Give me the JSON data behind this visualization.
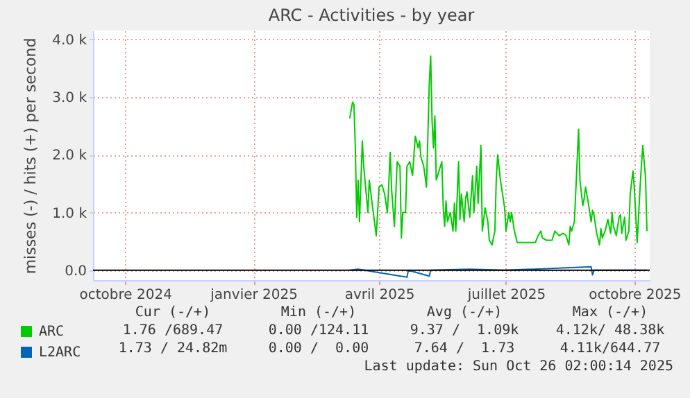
{
  "chart_data": {
    "type": "line",
    "title": "ARC - Activities - by year",
    "ylabel": "misses (-) / hits (+) per second",
    "xlim": [
      "2024-09-23",
      "2025-10-27"
    ],
    "xticks": [
      {
        "value": "2024-10-16",
        "label": "octobre 2024"
      },
      {
        "value": "2025-01-16",
        "label": "janvier 2025"
      },
      {
        "value": "2025-04-16",
        "label": "avril 2025"
      },
      {
        "value": "2025-07-16",
        "label": "juillet 2025"
      },
      {
        "value": "2025-10-16",
        "label": "octobre 2025"
      }
    ],
    "ylim": [
      -170,
      4150
    ],
    "yticks": [
      {
        "value": 0,
        "label": "0.0"
      },
      {
        "value": 1000,
        "label": "1.0 k"
      },
      {
        "value": 2000,
        "label": "2.0 k"
      },
      {
        "value": 3000,
        "label": "3.0 k"
      },
      {
        "value": 4000,
        "label": "4.0 k"
      }
    ],
    "grid": true,
    "legend": "bottom",
    "ref_lines": [
      {
        "axis": "y",
        "value": 0,
        "color": "#000000"
      }
    ],
    "series": [
      {
        "name": "ARC",
        "color": "#00cc00",
        "x": [
          "2025-03-26",
          "2025-03-28",
          "2025-03-29",
          "2025-03-30",
          "2025-03-31",
          "2025-04-01",
          "2025-04-02",
          "2025-04-04",
          "2025-04-05",
          "2025-04-08",
          "2025-04-09",
          "2025-04-11",
          "2025-04-14",
          "2025-04-16",
          "2025-04-18",
          "2025-04-20",
          "2025-04-22",
          "2025-04-24",
          "2025-04-25",
          "2025-04-27",
          "2025-04-29",
          "2025-05-01",
          "2025-05-02",
          "2025-05-03",
          "2025-05-05",
          "2025-05-06",
          "2025-05-08",
          "2025-05-10",
          "2025-05-11",
          "2025-05-12",
          "2025-05-14",
          "2025-05-15",
          "2025-05-16",
          "2025-05-18",
          "2025-05-20",
          "2025-05-22",
          "2025-05-23",
          "2025-05-24",
          "2025-05-25",
          "2025-05-26",
          "2025-05-27",
          "2025-05-29",
          "2025-05-31",
          "2025-06-01",
          "2025-06-02",
          "2025-06-03",
          "2025-06-04",
          "2025-06-06",
          "2025-06-08",
          "2025-06-09",
          "2025-06-10",
          "2025-06-12",
          "2025-06-13",
          "2025-06-14",
          "2025-06-16",
          "2025-06-17",
          "2025-06-18",
          "2025-06-20",
          "2025-06-22",
          "2025-06-23",
          "2025-06-25",
          "2025-06-26",
          "2025-06-28",
          "2025-06-29",
          "2025-07-01",
          "2025-07-03",
          "2025-07-04",
          "2025-07-06",
          "2025-07-08",
          "2025-07-09",
          "2025-07-10",
          "2025-07-12",
          "2025-07-13",
          "2025-07-15",
          "2025-07-16",
          "2025-07-18",
          "2025-07-19",
          "2025-07-20",
          "2025-07-22",
          "2025-07-24",
          "2025-07-31",
          "2025-08-06",
          "2025-08-08",
          "2025-08-10",
          "2025-08-11",
          "2025-08-14",
          "2025-08-18",
          "2025-08-20",
          "2025-08-23",
          "2025-08-26",
          "2025-08-28",
          "2025-08-30",
          "2025-08-31",
          "2025-09-01",
          "2025-09-03",
          "2025-09-06",
          "2025-09-07",
          "2025-09-09",
          "2025-09-10",
          "2025-09-11",
          "2025-09-13",
          "2025-09-15",
          "2025-09-16",
          "2025-09-17",
          "2025-09-19",
          "2025-09-21",
          "2025-09-22",
          "2025-09-23",
          "2025-09-25",
          "2025-09-27",
          "2025-09-29",
          "2025-09-30",
          "2025-10-01",
          "2025-10-03",
          "2025-10-05",
          "2025-10-06",
          "2025-10-07",
          "2025-10-09",
          "2025-10-10",
          "2025-10-12",
          "2025-10-13",
          "2025-10-15",
          "2025-10-16",
          "2025-10-18",
          "2025-10-20",
          "2025-10-21",
          "2025-10-22",
          "2025-10-24",
          "2025-10-25"
        ],
        "values": [
          2630,
          2910,
          2870,
          2120,
          920,
          1560,
          840,
          2240,
          1800,
          1000,
          1560,
          1160,
          600,
          1440,
          1480,
          1320,
          1000,
          2040,
          1400,
          760,
          1880,
          1800,
          560,
          1000,
          1000,
          1800,
          1880,
          1640,
          2000,
          2320,
          2120,
          2240,
          1960,
          1800,
          1440,
          3230,
          3710,
          2590,
          2120,
          2670,
          1560,
          1720,
          1880,
          1080,
          760,
          1200,
          840,
          1000,
          680,
          1160,
          680,
          1880,
          880,
          1320,
          840,
          1240,
          1360,
          920,
          1640,
          1000,
          1800,
          1160,
          2160,
          680,
          1080,
          840,
          520,
          440,
          680,
          1560,
          2000,
          1560,
          1400,
          1080,
          680,
          1000,
          840,
          1000,
          680,
          480,
          480,
          480,
          600,
          680,
          560,
          520,
          520,
          680,
          600,
          640,
          600,
          440,
          760,
          680,
          840,
          2440,
          1560,
          1120,
          1240,
          1440,
          1160,
          840,
          1040,
          960,
          640,
          440,
          720,
          560,
          680,
          880,
          640,
          1000,
          760,
          600,
          920,
          960,
          640,
          920,
          520,
          680,
          1320,
          1720,
          1400,
          480,
          1400,
          1800,
          2160,
          1600,
          680
        ]
      },
      {
        "name": "L2ARC",
        "color": "#0066b3",
        "x": [
          "2025-03-26",
          "2025-04-01",
          "2025-05-06",
          "2025-05-07",
          "2025-05-22",
          "2025-05-23",
          "2025-06-20",
          "2025-07-15",
          "2025-09-15",
          "2025-09-16",
          "2025-09-17",
          "2025-10-25"
        ],
        "values": [
          0,
          20,
          -120,
          0,
          -100,
          0,
          20,
          0,
          60,
          -80,
          0,
          0
        ]
      }
    ],
    "annotations": [
      "Cur (-/+)",
      "Min (-/+)",
      "Avg (-/+)",
      "Max (-/+)",
      "1.76 /689.47",
      "0.00 /124.11",
      "9.37 /  1.09k",
      "4.12k/ 48.38k",
      "1.73 / 24.82m",
      "0.00 /  0.00",
      "7.64 /  1.73",
      "4.11k/644.77",
      "Last update: Sun Oct 26 02:00:14 2025"
    ]
  }
}
